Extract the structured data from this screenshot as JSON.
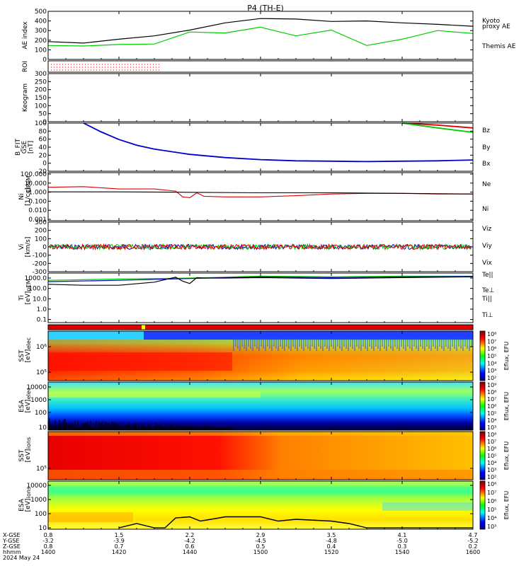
{
  "title": "P4 (TH-E)",
  "x_ticks": [
    "1400",
    "1420",
    "1440",
    "1500",
    "1520",
    "1540",
    "1600"
  ],
  "ephemeris": {
    "labels": [
      "X-GSE",
      "Y-GSE",
      "Z-GSE",
      "hhmm",
      "2024 May 24"
    ],
    "columns": [
      [
        "0.8",
        "-3.2",
        "0.8"
      ],
      [
        "1.5",
        "-3.9",
        "0.7"
      ],
      [
        "2.2",
        "-4.2",
        "0.6"
      ],
      [
        "2.9",
        "-4.5",
        "0.5"
      ],
      [
        "3.5",
        "-4.8",
        "0.4"
      ],
      [
        "4.1",
        "-5.0",
        "0.3"
      ],
      [
        "4.7",
        "-5.2",
        "0.2"
      ]
    ]
  },
  "panels": {
    "ae": {
      "ylabel": "AE index",
      "yticks": [
        "500",
        "400",
        "300",
        "200",
        "100",
        "0"
      ],
      "legend": [
        {
          "text": "Kyoto",
          "color": "#00cc00"
        },
        {
          "text": "proxy AE",
          "color": "#00cc00"
        },
        {
          "text": "Themis AE",
          "color": "#000000"
        }
      ]
    },
    "roi": {
      "ylabel": "ROI"
    },
    "keogram": {
      "ylabel": "Keogram",
      "yticks": [
        "300",
        "250",
        "200",
        "150",
        "100",
        "50",
        "0"
      ]
    },
    "bfield": {
      "ylabel": [
        "B_FIT",
        "GSE",
        "[nT]"
      ],
      "yticks": [
        "100",
        "80",
        "60",
        "40",
        "20",
        "0",
        "-20"
      ],
      "legend": [
        {
          "text": "Bz",
          "color": "#dd0000"
        },
        {
          "text": "By",
          "color": "#00cc00"
        },
        {
          "text": "Bx",
          "color": "#0000cc"
        }
      ]
    },
    "density": {
      "ylabel": [
        "Ni",
        "[1/cc]"
      ],
      "ylabel_small": "ElPeM",
      "yticks": [
        "100.000",
        "10.000",
        "1.000",
        "0.100",
        "0.010",
        "0.001"
      ],
      "legend": [
        {
          "text": "Ne",
          "color": "#dd0000"
        },
        {
          "text": "Ni",
          "color": "#000000"
        }
      ]
    },
    "velocity": {
      "ylabel": [
        "Vi",
        "[km/s]"
      ],
      "yticks": [
        "300",
        "200",
        "100",
        "0",
        "-100",
        "-200",
        "-300"
      ],
      "legend": [
        {
          "text": "Viz",
          "color": "#dd0000"
        },
        {
          "text": "Viy",
          "color": "#00cc00"
        },
        {
          "text": "Vix",
          "color": "#0000cc"
        }
      ]
    },
    "temp": {
      "ylabel": [
        "Ti",
        "[eV]"
      ],
      "ylabel_small": "pEM",
      "yticks": [
        "1000.0",
        "100.0",
        "10.0",
        "1.0",
        "0.1"
      ],
      "legend": [
        {
          "text": "Te||",
          "color": "#000000"
        },
        {
          "text": "Te⊥",
          "color": "#dd0000"
        },
        {
          "text": "Ti||",
          "color": "#00cc00"
        },
        {
          "text": "Ti⊥",
          "color": "#0000cc"
        }
      ]
    },
    "sst_e": {
      "ylabel": [
        "SST",
        "[eV]"
      ],
      "ylabel_small": "elec",
      "yticks": [
        "10⁶",
        "10⁵"
      ],
      "cbar_label": "Eflux, EFU",
      "cbar_ticks": [
        "10⁸",
        "10⁷",
        "10⁶",
        "10⁵",
        "10⁴",
        "10³",
        "10²"
      ]
    },
    "esa_e": {
      "ylabel": [
        "ESA",
        "[eV]"
      ],
      "ylabel_small": "elec",
      "yticks": [
        "10000",
        "1000",
        "100",
        "10"
      ],
      "cbar_label": "Eflux, EFU",
      "cbar_ticks": [
        "10⁹",
        "10⁸",
        "10⁷",
        "10⁶",
        "10⁵",
        "10⁴",
        "10³"
      ]
    },
    "sst_i": {
      "ylabel": [
        "SST",
        "[eV]"
      ],
      "ylabel_small": "ions",
      "yticks": [
        "10⁵"
      ],
      "cbar_label": "Eflux, EFU",
      "cbar_ticks": [
        "10⁸",
        "10⁷",
        "10⁶",
        "10⁵",
        "10⁴",
        "10³",
        "10²"
      ]
    },
    "esa_i": {
      "ylabel": [
        "ESA",
        "[eV]"
      ],
      "ylabel_small": "ions",
      "yticks": [
        "10000",
        "1000",
        "100",
        "10"
      ],
      "cbar_label": "Eflux, EFU",
      "cbar_ticks": [
        "10⁸",
        "10⁷",
        "10⁶",
        "10⁵",
        "10⁴",
        "10³"
      ]
    }
  },
  "chart_data": [
    {
      "type": "line",
      "name": "ae",
      "ylim": [
        0,
        500
      ],
      "x": [
        1400,
        1410,
        1420,
        1430,
        1440,
        1450,
        1500,
        1510,
        1520,
        1530,
        1540,
        1550,
        1600
      ],
      "series": [
        {
          "name": "Themis AE",
          "color": "#000000",
          "values": [
            185,
            170,
            210,
            245,
            305,
            380,
            425,
            420,
            395,
            400,
            380,
            365,
            345
          ]
        },
        {
          "name": "Kyoto proxy AE",
          "color": "#00cc00",
          "values": [
            145,
            140,
            155,
            160,
            285,
            275,
            335,
            245,
            305,
            145,
            210,
            300,
            270
          ]
        }
      ]
    },
    {
      "type": "line",
      "name": "bfield",
      "ylim": [
        -20,
        100
      ],
      "x": [
        1410,
        1415,
        1420,
        1425,
        1430,
        1440,
        1450,
        1500,
        1510,
        1520,
        1530,
        1540,
        1550,
        1600
      ],
      "series": [
        {
          "name": "Bx",
          "color": "#0000cc",
          "values": [
            100,
            78,
            59,
            45,
            35,
            22,
            14,
            9,
            6,
            5,
            4,
            5,
            6,
            8
          ]
        },
        {
          "name": "Bz",
          "color": "#dd0000",
          "x": [
            1540,
            1550,
            1600
          ],
          "values": [
            100,
            95,
            88
          ]
        },
        {
          "name": "By",
          "color": "#00cc00",
          "x": [
            1540,
            1550,
            1600
          ],
          "values": [
            100,
            88,
            77
          ]
        }
      ]
    },
    {
      "type": "line",
      "name": "density",
      "ylim": [
        0.001,
        100
      ],
      "ylog": true,
      "series": [
        {
          "name": "Ne",
          "color": "#dd0000",
          "x": [
            1400,
            1410,
            1420,
            1430,
            1436,
            1438,
            1440,
            1442,
            1444,
            1450,
            1500,
            1510,
            1520,
            1530,
            1540,
            1550,
            1600
          ],
          "values": [
            3,
            3.5,
            2,
            2,
            1.2,
            0.3,
            0.25,
            0.8,
            0.35,
            0.3,
            0.3,
            0.4,
            0.6,
            0.7,
            0.7,
            0.6,
            0.6
          ]
        },
        {
          "name": "Ni",
          "color": "#000000",
          "x": [
            1400,
            1420,
            1440,
            1500,
            1520,
            1540,
            1600
          ],
          "values": [
            1,
            1,
            0.9,
            0.8,
            0.8,
            0.7,
            0.6
          ]
        }
      ]
    },
    {
      "type": "line",
      "name": "velocity",
      "ylim": [
        -300,
        300
      ],
      "x": [
        1400,
        1600
      ],
      "series": [
        {
          "name": "Viz",
          "color": "#dd0000",
          "values": [
            0,
            0
          ]
        },
        {
          "name": "Viy",
          "color": "#00cc00",
          "values": [
            0,
            0
          ]
        },
        {
          "name": "Vix",
          "color": "#0000cc",
          "values": [
            0,
            0
          ]
        }
      ]
    },
    {
      "type": "line",
      "name": "temp",
      "ylim": [
        0.1,
        1000
      ],
      "ylog": true,
      "series": [
        {
          "name": "Ti||",
          "color": "#00cc00",
          "x": [
            1400,
            1420,
            1440,
            1450,
            1500,
            1520,
            1540,
            1600
          ],
          "values": [
            600,
            800,
            1000,
            1200,
            1500,
            1300,
            1500,
            1500
          ]
        },
        {
          "name": "Ti⊥",
          "color": "#0000cc",
          "x": [
            1400,
            1420,
            1440,
            1450,
            1500,
            1520,
            1540,
            1600
          ],
          "values": [
            450,
            600,
            900,
            1100,
            1300,
            1100,
            1300,
            1400
          ]
        },
        {
          "name": "Te||",
          "color": "#000000",
          "x": [
            1400,
            1410,
            1420,
            1430,
            1436,
            1438,
            1440,
            1442,
            1444,
            1450,
            1500,
            1520,
            1540,
            1600
          ],
          "values": [
            250,
            200,
            200,
            400,
            1200,
            500,
            300,
            1100,
            1000,
            1000,
            1100,
            900,
            1100,
            1300
          ]
        }
      ]
    },
    {
      "type": "heatmap",
      "name": "sst_e",
      "description_ticks": "energy in eV, log scale"
    },
    {
      "type": "heatmap",
      "name": "esa_e"
    },
    {
      "type": "heatmap",
      "name": "sst_i"
    },
    {
      "type": "heatmap",
      "name": "esa_i",
      "overlay": {
        "name": "black curve",
        "x": [
          1420,
          1425,
          1430,
          1433,
          1436,
          1440,
          1443,
          1446,
          1450,
          1500,
          1505,
          1510,
          1520,
          1525,
          1530,
          1600
        ],
        "values": [
          10,
          20,
          10,
          10,
          50,
          60,
          30,
          40,
          60,
          60,
          30,
          40,
          30,
          20,
          10,
          10
        ]
      }
    }
  ]
}
